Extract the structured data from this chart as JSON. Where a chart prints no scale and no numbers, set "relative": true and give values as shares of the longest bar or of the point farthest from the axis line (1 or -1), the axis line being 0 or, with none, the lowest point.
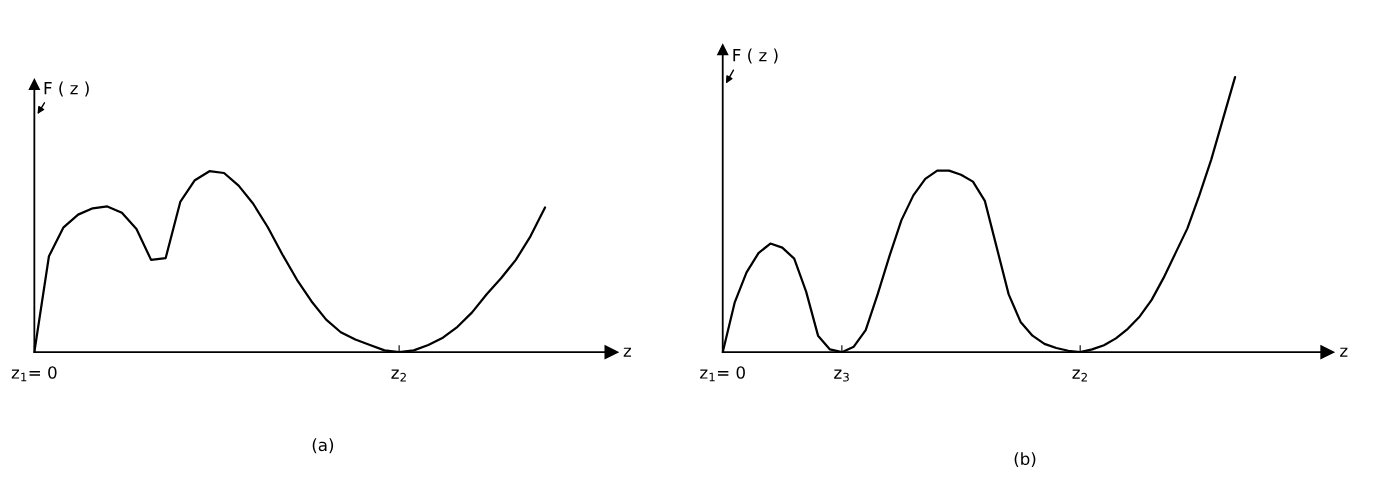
{
  "chart_data": [
    {
      "type": "line",
      "relative": true,
      "title": "(a)",
      "xlabel": "z",
      "ylabel": "F ( z )",
      "categories": [
        "z$_{1}$= 0",
        null,
        null,
        null,
        null,
        null,
        null,
        null,
        null,
        null,
        null,
        null,
        null,
        null,
        null,
        null,
        null,
        null,
        null,
        null,
        null,
        null,
        null,
        null,
        null,
        "z$_{2}$",
        null,
        null,
        null,
        null,
        null,
        null,
        null,
        null,
        null,
        null
      ],
      "series": [
        {
          "color": "#000000",
          "values": [
            0,
            0.53,
            0.69,
            0.76,
            0.795,
            0.805,
            0.77,
            0.68,
            0.51,
            0.52,
            0.83,
            0.95,
            1,
            0.99,
            0.92,
            0.82,
            0.69,
            0.54,
            0.4,
            0.28,
            0.18,
            0.11,
            0.07,
            0.04,
            0.01,
            0,
            0.01,
            0.04,
            0.08,
            0.14,
            0.22,
            0.32,
            0.41,
            0.51,
            0.64,
            0.8
          ]
        }
      ]
    },
    {
      "type": "line",
      "relative": true,
      "title": "(b)",
      "xlabel": "z",
      "ylabel": "F ( z )",
      "categories": [
        "z$_{1}$= 0",
        null,
        null,
        null,
        null,
        null,
        null,
        null,
        null,
        null,
        "z$_{3}$",
        null,
        null,
        null,
        null,
        null,
        null,
        null,
        null,
        null,
        null,
        null,
        null,
        null,
        null,
        null,
        null,
        null,
        null,
        null,
        "z$_{2}$",
        null,
        null,
        null,
        null,
        null,
        null,
        null,
        null,
        null,
        null,
        null,
        null,
        null
      ],
      "series": [
        {
          "color": "#000000",
          "values": [
            0,
            0.18,
            0.29,
            0.36,
            0.395,
            0.38,
            0.34,
            0.22,
            0.06,
            0.01,
            0,
            0.02,
            0.08,
            0.21,
            0.35,
            0.48,
            0.57,
            0.63,
            0.66,
            0.66,
            0.645,
            0.62,
            0.55,
            0.38,
            0.21,
            0.11,
            0.06,
            0.03,
            0.015,
            0.005,
            0,
            0.01,
            0.025,
            0.05,
            0.085,
            0.13,
            0.19,
            0.27,
            0.36,
            0.45,
            0.57,
            0.7,
            0.85,
            1
          ]
        }
      ]
    }
  ]
}
